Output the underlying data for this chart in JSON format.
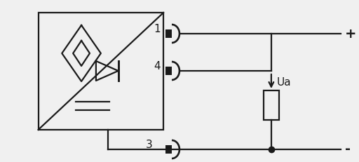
{
  "bg_color": "#f0f0f0",
  "line_color": "#1a1a1a",
  "pin1_label": "1",
  "pin4_label": "4",
  "pin3_label": "3",
  "plus_label": "+",
  "minus_label": "-",
  "ua_label": "Ua"
}
